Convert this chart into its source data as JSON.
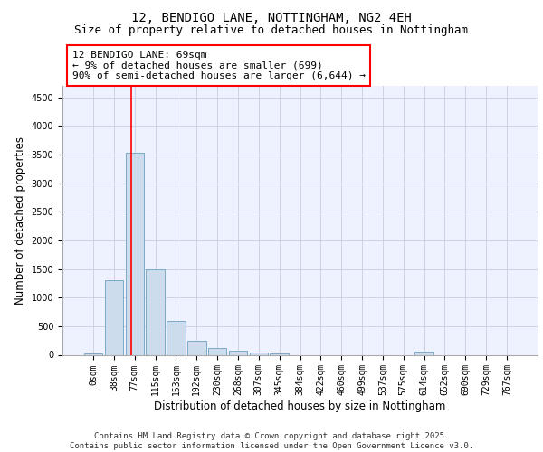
{
  "title_line1": "12, BENDIGO LANE, NOTTINGHAM, NG2 4EH",
  "title_line2": "Size of property relative to detached houses in Nottingham",
  "xlabel": "Distribution of detached houses by size in Nottingham",
  "ylabel": "Number of detached properties",
  "bar_color": "#ccdcec",
  "bar_edge_color": "#7aaac8",
  "background_color": "#eef2ff",
  "grid_color": "#c8cce0",
  "vline_color": "red",
  "vline_x": 1.82,
  "annotation_box_text": "12 BENDIGO LANE: 69sqm\n← 9% of detached houses are smaller (699)\n90% of semi-detached houses are larger (6,644) →",
  "categories": [
    "0sqm",
    "38sqm",
    "77sqm",
    "115sqm",
    "153sqm",
    "192sqm",
    "230sqm",
    "268sqm",
    "307sqm",
    "345sqm",
    "384sqm",
    "422sqm",
    "460sqm",
    "499sqm",
    "537sqm",
    "575sqm",
    "614sqm",
    "652sqm",
    "690sqm",
    "729sqm",
    "767sqm"
  ],
  "values": [
    28,
    1300,
    3530,
    1500,
    590,
    240,
    115,
    75,
    45,
    30,
    0,
    0,
    0,
    0,
    0,
    0,
    55,
    0,
    0,
    0,
    0
  ],
  "ylim": [
    0,
    4700
  ],
  "yticks": [
    0,
    500,
    1000,
    1500,
    2000,
    2500,
    3000,
    3500,
    4000,
    4500
  ],
  "footer_text": "Contains HM Land Registry data © Crown copyright and database right 2025.\nContains public sector information licensed under the Open Government Licence v3.0.",
  "title_fontsize": 10,
  "subtitle_fontsize": 9,
  "axis_label_fontsize": 8.5,
  "tick_fontsize": 7,
  "footer_fontsize": 6.5,
  "annotation_fontsize": 8
}
